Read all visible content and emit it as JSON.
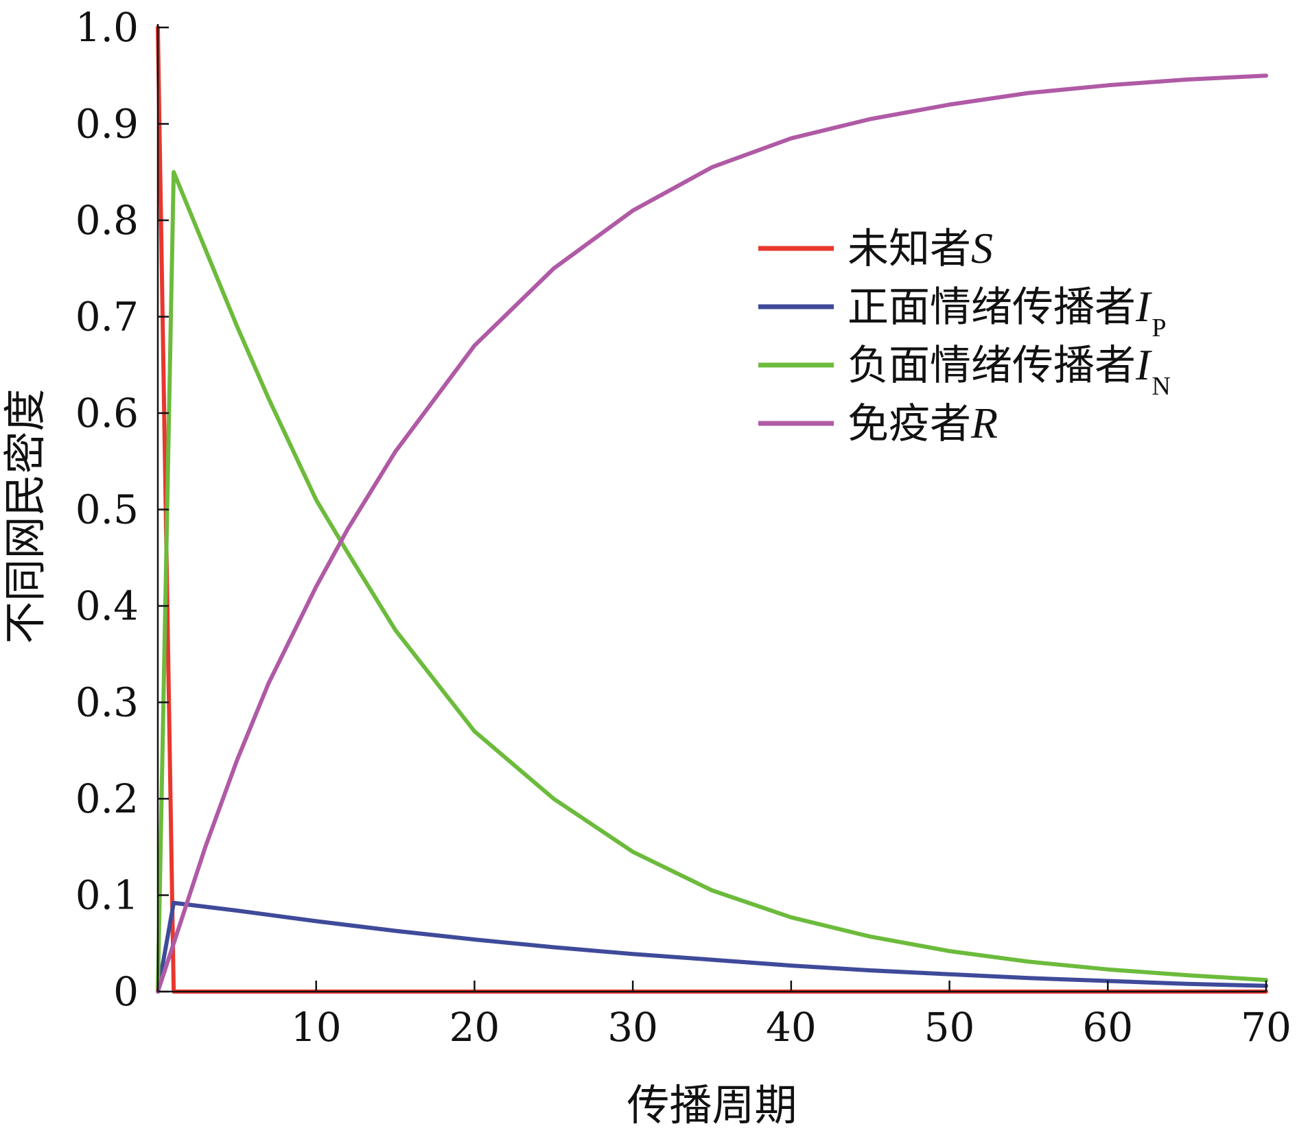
{
  "chart_data": {
    "type": "line",
    "title": "",
    "xlabel": "传播周期",
    "ylabel": "不同网民密度",
    "xlim": [
      0,
      70
    ],
    "ylim": [
      0,
      1.0
    ],
    "grid": false,
    "legend_position": "top-right",
    "x_ticks": [
      10,
      20,
      30,
      40,
      50,
      60,
      70
    ],
    "x_tick_labels": [
      "10",
      "20",
      "30",
      "40",
      "50",
      "60",
      "70"
    ],
    "y_ticks": [
      0,
      0.1,
      0.2,
      0.3,
      0.4,
      0.5,
      0.6,
      0.7,
      0.8,
      0.9,
      1.0
    ],
    "y_tick_labels": [
      "0",
      "0.1",
      "0.2",
      "0.3",
      "0.4",
      "0.5",
      "0.6",
      "0.7",
      "0.8",
      "0.9",
      "1.0"
    ],
    "series": [
      {
        "name": "未知者",
        "symbol": "S",
        "subscript": "",
        "color": "#e8372e",
        "x": [
          0,
          1,
          2,
          5,
          10,
          20,
          30,
          40,
          50,
          60,
          70
        ],
        "y": [
          1.0,
          0.0,
          0.0,
          0.0,
          0.0,
          0.0,
          0.0,
          0.0,
          0.0,
          0.0,
          0.0
        ]
      },
      {
        "name": "正面情绪传播者",
        "symbol": "I",
        "subscript": "P",
        "color": "#3f4a9a",
        "x": [
          0,
          1,
          5,
          10,
          15,
          20,
          25,
          30,
          35,
          40,
          45,
          50,
          55,
          60,
          65,
          70
        ],
        "y": [
          0.0,
          0.092,
          0.084,
          0.073,
          0.063,
          0.054,
          0.046,
          0.039,
          0.033,
          0.027,
          0.022,
          0.018,
          0.014,
          0.011,
          0.008,
          0.006
        ]
      },
      {
        "name": "负面情绪传播者",
        "symbol": "I",
        "subscript": "N",
        "color": "#6cbb3c",
        "x": [
          0,
          1,
          3,
          5,
          7,
          10,
          12,
          15,
          20,
          25,
          30,
          35,
          40,
          45,
          50,
          55,
          60,
          65,
          70
        ],
        "y": [
          0.0,
          0.85,
          0.77,
          0.69,
          0.615,
          0.51,
          0.455,
          0.375,
          0.27,
          0.2,
          0.145,
          0.105,
          0.077,
          0.057,
          0.042,
          0.031,
          0.023,
          0.017,
          0.012
        ]
      },
      {
        "name": "免疫者",
        "symbol": "R",
        "subscript": "",
        "color": "#b05aa5",
        "x": [
          0,
          1,
          3,
          5,
          7,
          10,
          12,
          15,
          20,
          25,
          30,
          35,
          40,
          45,
          50,
          55,
          60,
          65,
          70
        ],
        "y": [
          0.0,
          0.05,
          0.15,
          0.24,
          0.32,
          0.42,
          0.48,
          0.56,
          0.67,
          0.75,
          0.81,
          0.855,
          0.885,
          0.905,
          0.92,
          0.932,
          0.94,
          0.946,
          0.95
        ]
      }
    ]
  }
}
